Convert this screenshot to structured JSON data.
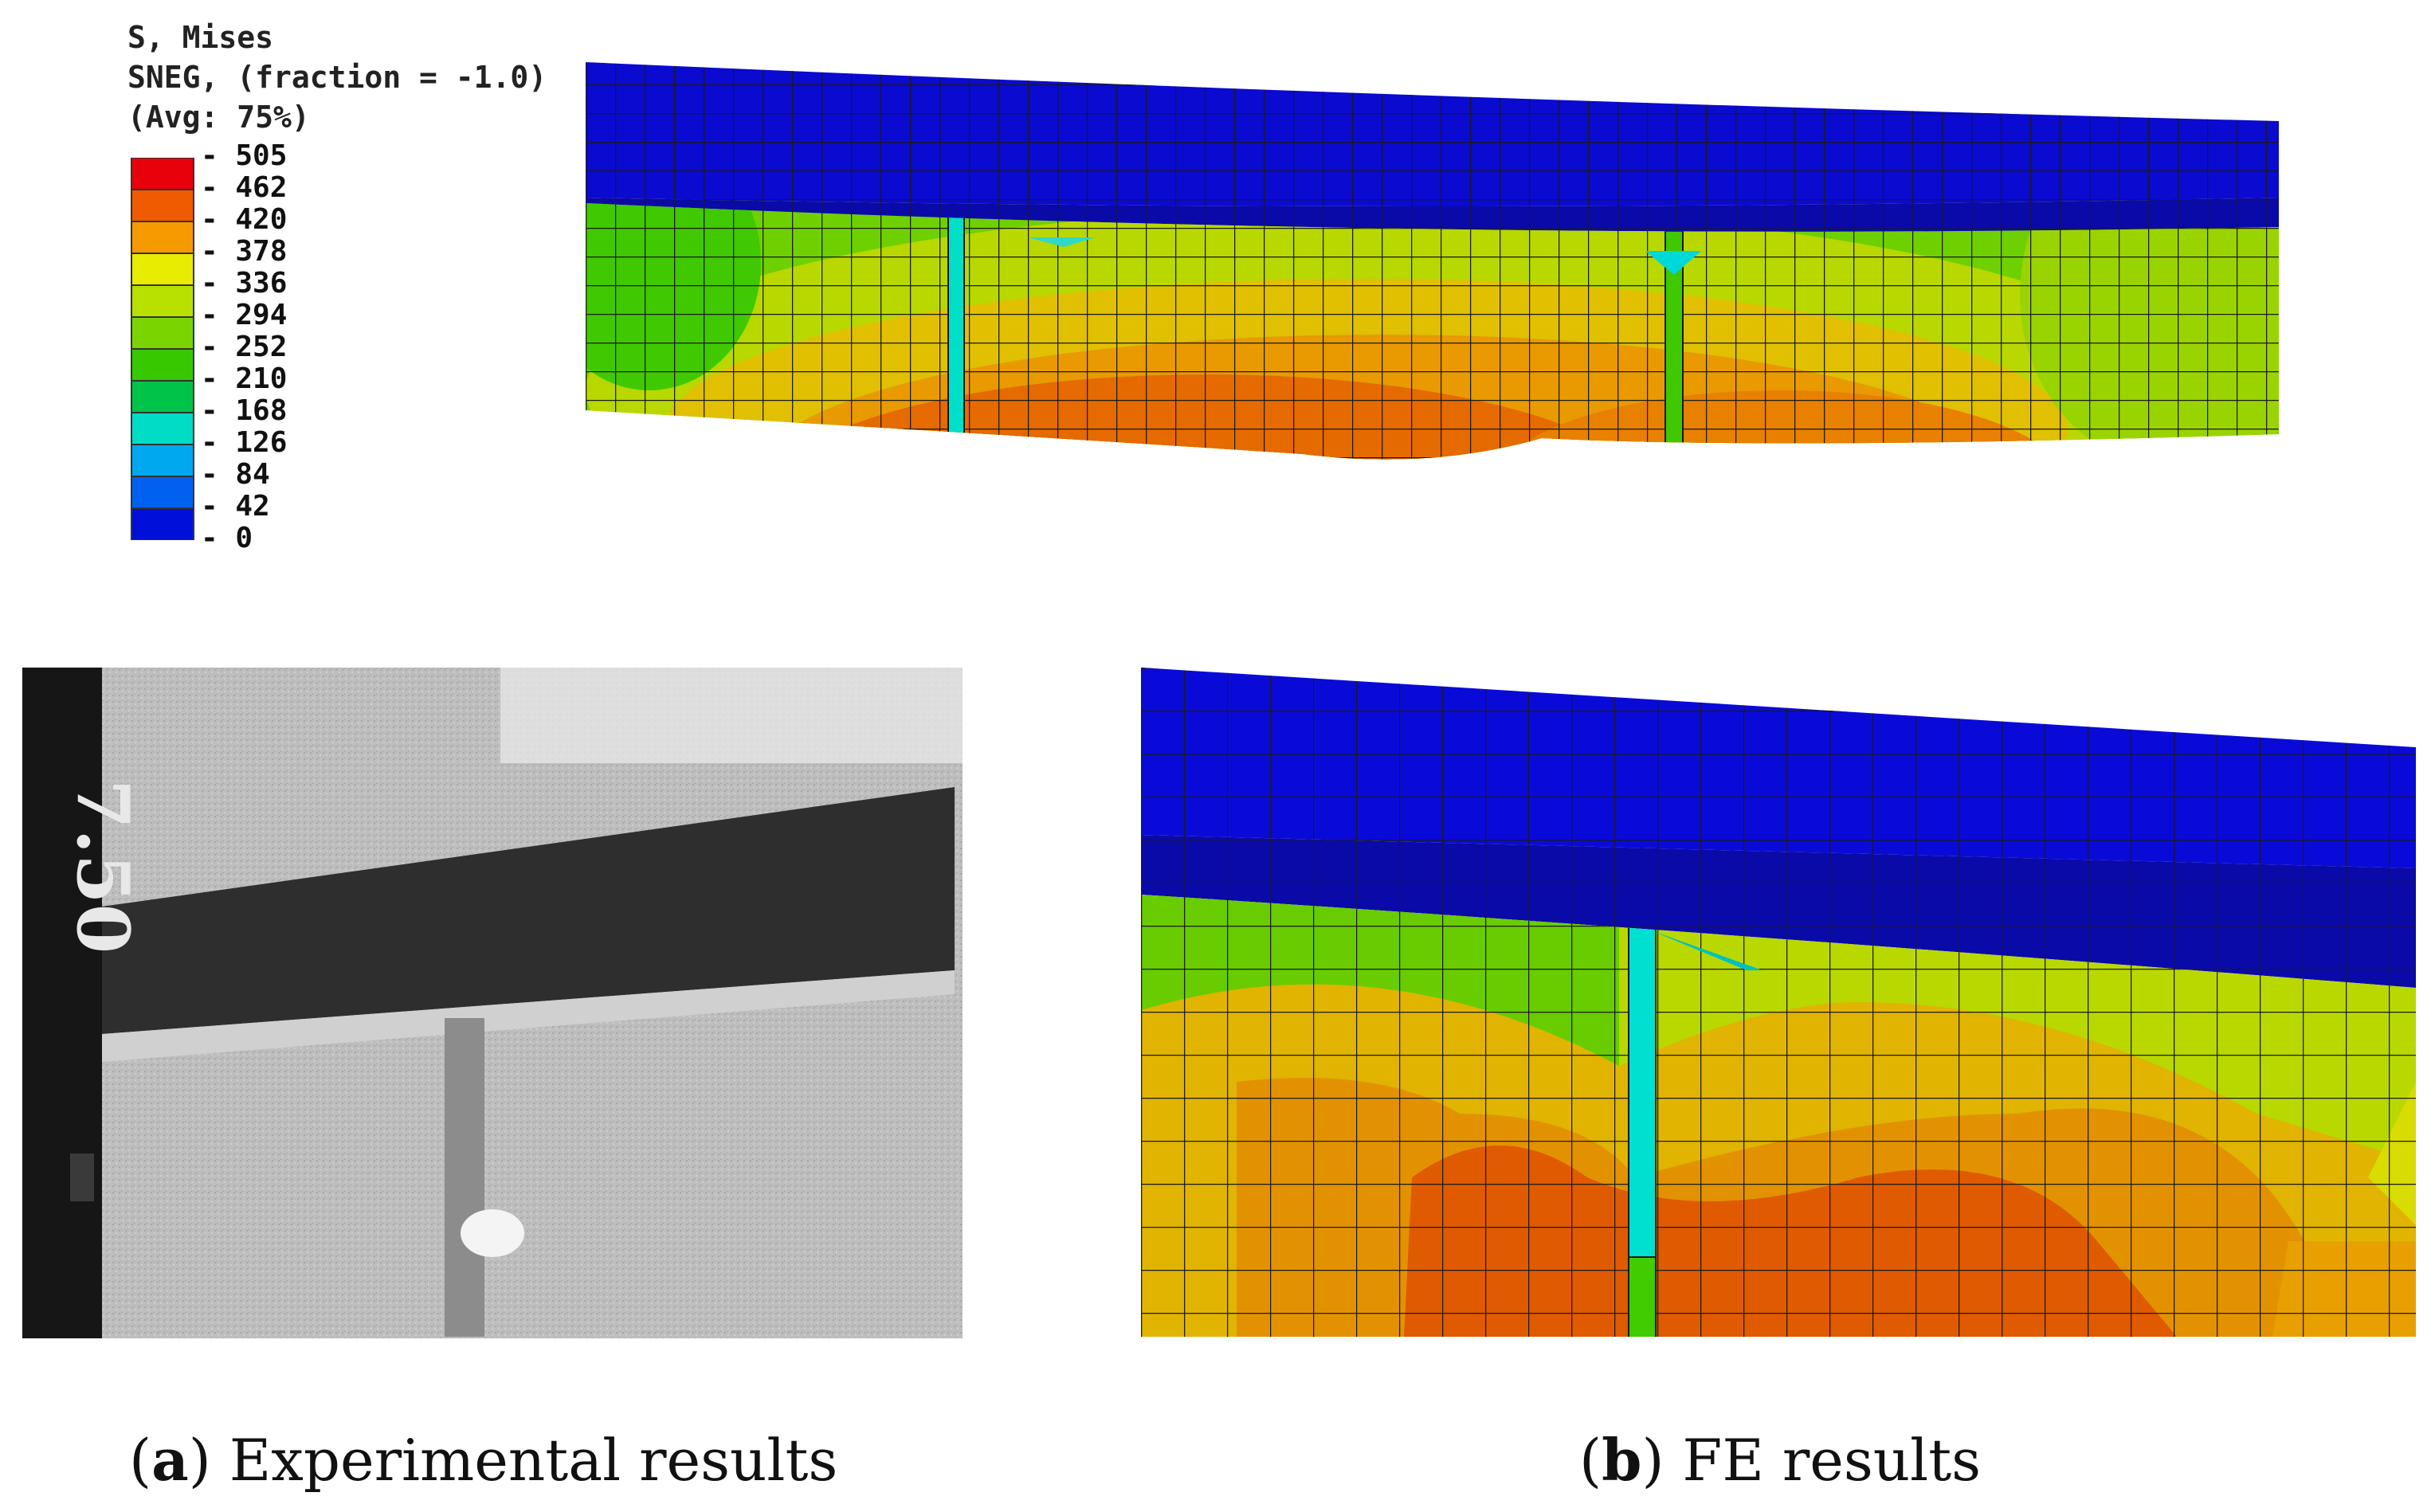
{
  "legend": {
    "title_line1": "S, Mises",
    "title_line2": "SNEG, (fraction = -1.0)",
    "title_line3": "(Avg: 75%)",
    "values": [
      "505",
      "462",
      "420",
      "378",
      "336",
      "294",
      "252",
      "210",
      "168",
      "126",
      "84",
      "42",
      "0"
    ],
    "colors": [
      "#e8000b",
      "#f05a00",
      "#f59a00",
      "#e7ec00",
      "#b8e000",
      "#7ad400",
      "#38c800",
      "#00c44a",
      "#00dcc6",
      "#00a8f0",
      "#0060f0",
      "#0010d8"
    ]
  },
  "captions": {
    "a": {
      "letter": "a",
      "text": ") Experimental results"
    },
    "b": {
      "letter": "b",
      "text": ") FE results"
    }
  },
  "photo_marking": "7.50"
}
